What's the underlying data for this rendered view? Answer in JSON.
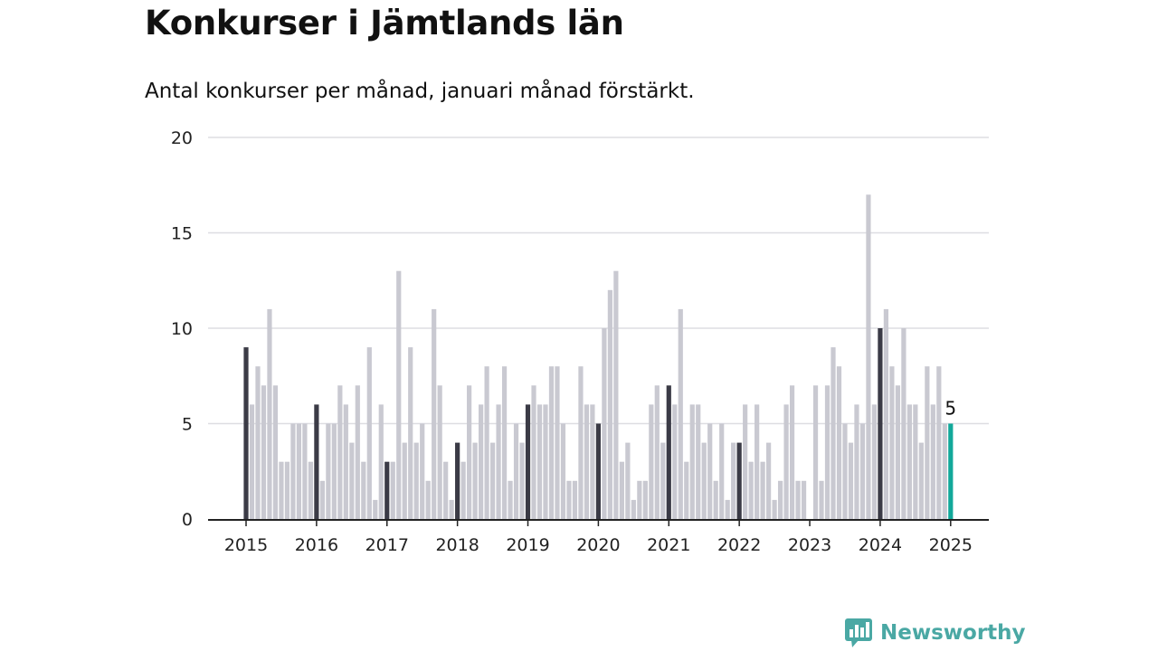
{
  "header": {
    "title": "Konkurser i Jämtlands län",
    "subtitle": "Antal konkurser per månad, januari månad förstärkt."
  },
  "brand": {
    "name": "Newsworthy",
    "icon": "newsworthy-logo-icon"
  },
  "colors": {
    "january": "#3b3b46",
    "other": "#c9c9d1",
    "latest": "#12a89a",
    "grid": "#dddde2",
    "axis": "#222222",
    "brand": "#4aa8a4"
  },
  "chart_data": {
    "type": "bar",
    "title": "Konkurser i Jämtlands län",
    "subtitle": "Antal konkurser per månad, januari månad förstärkt.",
    "xlabel": "",
    "ylabel": "",
    "ylim": [
      0,
      20
    ],
    "yticks": [
      0,
      5,
      10,
      15,
      20
    ],
    "xtick_labels": [
      "2015",
      "2016",
      "2017",
      "2018",
      "2019",
      "2020",
      "2021",
      "2022",
      "2023",
      "2024",
      "2025"
    ],
    "grid": true,
    "start": "2015-01",
    "end": "2025-01",
    "highlight": "january",
    "values": [
      9,
      6,
      8,
      7,
      11,
      7,
      3,
      3,
      5,
      5,
      5,
      3,
      6,
      2,
      5,
      5,
      7,
      6,
      4,
      7,
      3,
      9,
      1,
      6,
      3,
      3,
      13,
      4,
      9,
      4,
      5,
      2,
      11,
      7,
      3,
      1,
      4,
      3,
      7,
      4,
      6,
      8,
      4,
      6,
      8,
      2,
      5,
      4,
      6,
      7,
      6,
      6,
      8,
      8,
      5,
      2,
      2,
      8,
      6,
      6,
      5,
      10,
      12,
      13,
      3,
      4,
      1,
      2,
      2,
      6,
      7,
      4,
      7,
      6,
      11,
      3,
      6,
      6,
      4,
      5,
      2,
      5,
      1,
      4,
      4,
      6,
      3,
      6,
      3,
      4,
      1,
      2,
      6,
      7,
      2,
      2,
      0,
      7,
      2,
      7,
      9,
      8,
      5,
      4,
      6,
      5,
      17,
      6,
      10,
      11,
      8,
      7,
      10,
      6,
      6,
      4,
      8,
      6,
      8,
      5,
      5
    ],
    "latest_label": "5"
  }
}
